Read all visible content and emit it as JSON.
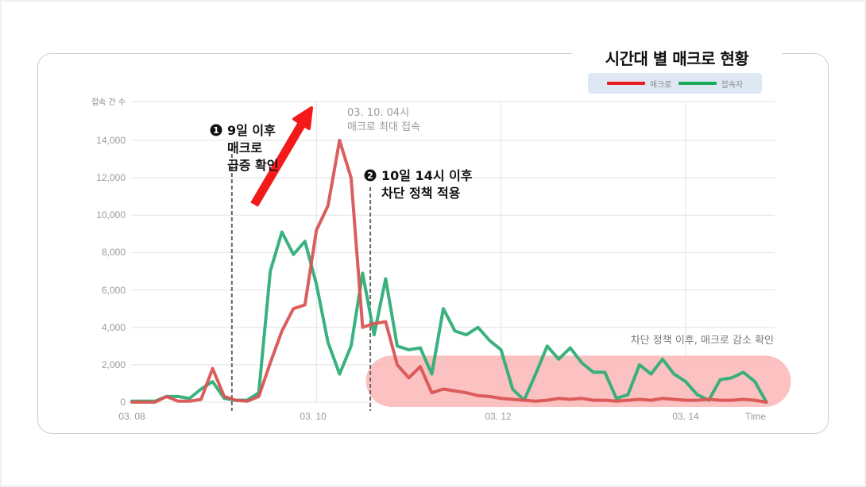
{
  "title": "시간대 별 매크로 현황",
  "legend": [
    {
      "label": "매크로",
      "color": "#e81c1c"
    },
    {
      "label": "접속자",
      "color": "#1aa85a"
    }
  ],
  "colors": {
    "macro_line": "#d95555",
    "user_line": "#2fae78",
    "highlight_fill": "#fbb6b6",
    "arrow": "#f21a1a",
    "grid": "#e2e2e2",
    "dashed": "#666666"
  },
  "annotations": {
    "badge1": "1",
    "note1_line1": "9일 이후",
    "note1_line2": "매크로",
    "note1_line3": "급증 확인",
    "badge2": "2",
    "note2_line1": "10일 14시 이후",
    "note2_line2": "차단 정책 적용",
    "peak_line1": "03. 10. 04시",
    "peak_line2": "매크로 최대 접속",
    "decrease_note": "차단 정책 이후, 매크로 감소 확인"
  },
  "chart_data": {
    "type": "line",
    "title": "시간대 별 매크로 현황",
    "xlabel": "Time",
    "ylabel": "접속 건 수",
    "ylim": [
      0,
      14000
    ],
    "yticks": [
      0,
      2000,
      4000,
      6000,
      8000,
      10000,
      12000,
      14000
    ],
    "ytick_labels": [
      "0",
      "2,000",
      "4,000",
      "6,000",
      "8,000",
      "10,000",
      "12,000",
      "14,000"
    ],
    "xtick_labels": [
      "03. 08",
      "03. 10",
      "03. 12",
      "03. 14",
      "Time"
    ],
    "grid": true,
    "legend_position": "top-right",
    "x_unit": "hours since 03.08 00시",
    "x": [
      0,
      3,
      6,
      9,
      12,
      15,
      18,
      21,
      24,
      27,
      30,
      33,
      36,
      39,
      42,
      45,
      48,
      51,
      54,
      57,
      60,
      63,
      66,
      69,
      72,
      75,
      78,
      81,
      84,
      87,
      90,
      93,
      96,
      99,
      102,
      105,
      108,
      111,
      114,
      117,
      120,
      123,
      126,
      129,
      132,
      135,
      138,
      141,
      144,
      147,
      150,
      153,
      156,
      159,
      162,
      165
    ],
    "series": [
      {
        "name": "매크로",
        "values": [
          0,
          0,
          0,
          300,
          50,
          50,
          150,
          1800,
          300,
          100,
          50,
          300,
          2100,
          3800,
          5000,
          5200,
          9200,
          10500,
          14000,
          12000,
          4000,
          4200,
          4300,
          2000,
          1300,
          1900,
          500,
          700,
          600,
          500,
          350,
          300,
          200,
          150,
          100,
          50,
          100,
          200,
          150,
          200,
          100,
          100,
          50,
          100,
          150,
          100,
          200,
          150,
          100,
          100,
          150,
          100,
          100,
          150,
          100,
          0
        ]
      },
      {
        "name": "접속자",
        "values": [
          50,
          50,
          50,
          300,
          300,
          200,
          700,
          1100,
          200,
          100,
          100,
          500,
          7000,
          9100,
          7900,
          8600,
          6300,
          3200,
          1500,
          3000,
          6900,
          3600,
          6600,
          3000,
          2800,
          2900,
          1500,
          5000,
          3800,
          3600,
          4000,
          3300,
          2800,
          700,
          100,
          1500,
          3000,
          2300,
          2900,
          2100,
          1600,
          1600,
          200,
          400,
          2000,
          1500,
          2300,
          1500,
          1100,
          400,
          100,
          1200,
          1300,
          1600,
          1100,
          0
        ]
      }
    ],
    "vlines": [
      {
        "x_hours": 26,
        "label": "9일 이후 매크로 급증 확인"
      },
      {
        "x_hours": 62,
        "label": "10일 14시 이후 차단 정책 적용"
      }
    ],
    "peak": {
      "x_hours": 52,
      "value": 14000,
      "label": "03. 10. 04시 매크로 최대 접속"
    },
    "highlight_region": {
      "x_hours_start": 65,
      "x_hours_end": 166,
      "y_start": 0,
      "y_end": 2400,
      "label": "차단 정책 이후, 매크로 감소 확인"
    }
  }
}
